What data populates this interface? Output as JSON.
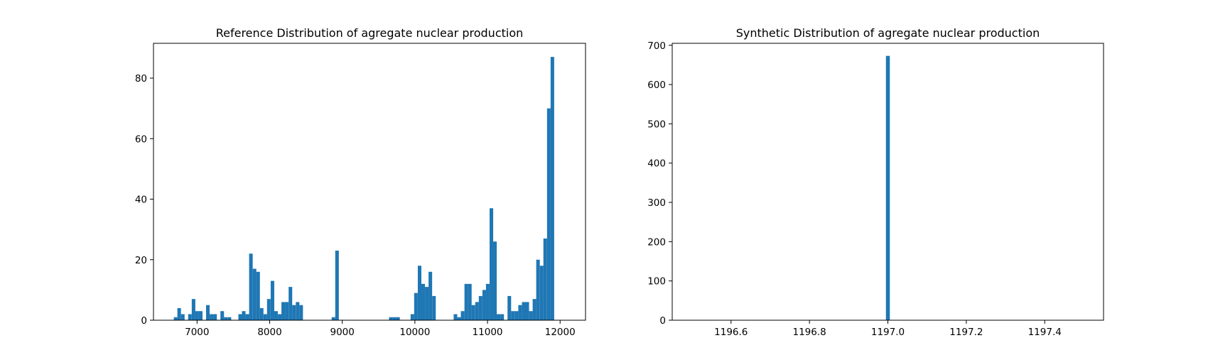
{
  "chart_data": [
    {
      "type": "histogram",
      "title": "Reference Distribution of agregate nuclear production",
      "xlabel": "",
      "ylabel": "",
      "xlim": [
        6400,
        12350
      ],
      "ylim": [
        0,
        91.5
      ],
      "xticks": [
        7000,
        8000,
        9000,
        10000,
        11000,
        12000
      ],
      "yticks": [
        0,
        20,
        40,
        60,
        80
      ],
      "bin_width": 49.4,
      "bar_color": "#1f77b4",
      "grid": false,
      "bins": [
        {
          "x": 6680,
          "y": 1
        },
        {
          "x": 6729,
          "y": 4
        },
        {
          "x": 6779,
          "y": 2
        },
        {
          "x": 6877,
          "y": 2
        },
        {
          "x": 6927,
          "y": 7
        },
        {
          "x": 6976,
          "y": 3
        },
        {
          "x": 7026,
          "y": 3
        },
        {
          "x": 7124,
          "y": 5
        },
        {
          "x": 7174,
          "y": 2
        },
        {
          "x": 7223,
          "y": 2
        },
        {
          "x": 7322,
          "y": 3
        },
        {
          "x": 7371,
          "y": 1
        },
        {
          "x": 7421,
          "y": 1
        },
        {
          "x": 7520,
          "y": 0
        },
        {
          "x": 7569,
          "y": 2
        },
        {
          "x": 7618,
          "y": 3
        },
        {
          "x": 7668,
          "y": 2
        },
        {
          "x": 7717,
          "y": 22
        },
        {
          "x": 7767,
          "y": 17
        },
        {
          "x": 7816,
          "y": 16
        },
        {
          "x": 7865,
          "y": 4
        },
        {
          "x": 7915,
          "y": 2
        },
        {
          "x": 7964,
          "y": 7
        },
        {
          "x": 8014,
          "y": 13
        },
        {
          "x": 8063,
          "y": 3
        },
        {
          "x": 8113,
          "y": 2
        },
        {
          "x": 8162,
          "y": 6
        },
        {
          "x": 8211,
          "y": 6
        },
        {
          "x": 8261,
          "y": 11
        },
        {
          "x": 8310,
          "y": 5
        },
        {
          "x": 8360,
          "y": 6
        },
        {
          "x": 8409,
          "y": 5
        },
        {
          "x": 8854,
          "y": 1
        },
        {
          "x": 8903,
          "y": 23
        },
        {
          "x": 9644,
          "y": 1
        },
        {
          "x": 9694,
          "y": 1
        },
        {
          "x": 9743,
          "y": 1
        },
        {
          "x": 9941,
          "y": 2
        },
        {
          "x": 9990,
          "y": 9
        },
        {
          "x": 10040,
          "y": 18
        },
        {
          "x": 10089,
          "y": 12
        },
        {
          "x": 10139,
          "y": 11
        },
        {
          "x": 10188,
          "y": 16
        },
        {
          "x": 10238,
          "y": 8
        },
        {
          "x": 10534,
          "y": 2
        },
        {
          "x": 10584,
          "y": 1
        },
        {
          "x": 10633,
          "y": 3
        },
        {
          "x": 10683,
          "y": 12
        },
        {
          "x": 10732,
          "y": 12
        },
        {
          "x": 10781,
          "y": 5
        },
        {
          "x": 10831,
          "y": 6
        },
        {
          "x": 10880,
          "y": 8
        },
        {
          "x": 10930,
          "y": 10
        },
        {
          "x": 10979,
          "y": 12
        },
        {
          "x": 11029,
          "y": 37
        },
        {
          "x": 11078,
          "y": 26
        },
        {
          "x": 11127,
          "y": 2
        },
        {
          "x": 11177,
          "y": 2
        },
        {
          "x": 11276,
          "y": 8
        },
        {
          "x": 11325,
          "y": 3
        },
        {
          "x": 11375,
          "y": 3
        },
        {
          "x": 11424,
          "y": 5
        },
        {
          "x": 11474,
          "y": 6
        },
        {
          "x": 11523,
          "y": 6
        },
        {
          "x": 11573,
          "y": 3
        },
        {
          "x": 11622,
          "y": 7
        },
        {
          "x": 11671,
          "y": 20
        },
        {
          "x": 11721,
          "y": 18
        },
        {
          "x": 11770,
          "y": 27
        },
        {
          "x": 11820,
          "y": 70
        },
        {
          "x": 11869,
          "y": 87
        }
      ]
    },
    {
      "type": "histogram",
      "title": "Synthetic Distribution of agregate nuclear production",
      "xlabel": "",
      "ylabel": "",
      "xlim": [
        1196.45,
        1197.55
      ],
      "ylim": [
        0,
        705
      ],
      "xticks": [
        "1196.6",
        "1196.8",
        "1197.0",
        "1197.2",
        "1197.4"
      ],
      "yticks": [
        0,
        100,
        200,
        300,
        400,
        500,
        600,
        700
      ],
      "bin_width": 0.01,
      "bar_color": "#1f77b4",
      "grid": false,
      "bins": [
        {
          "x": 1196.995,
          "y": 673
        }
      ]
    }
  ]
}
